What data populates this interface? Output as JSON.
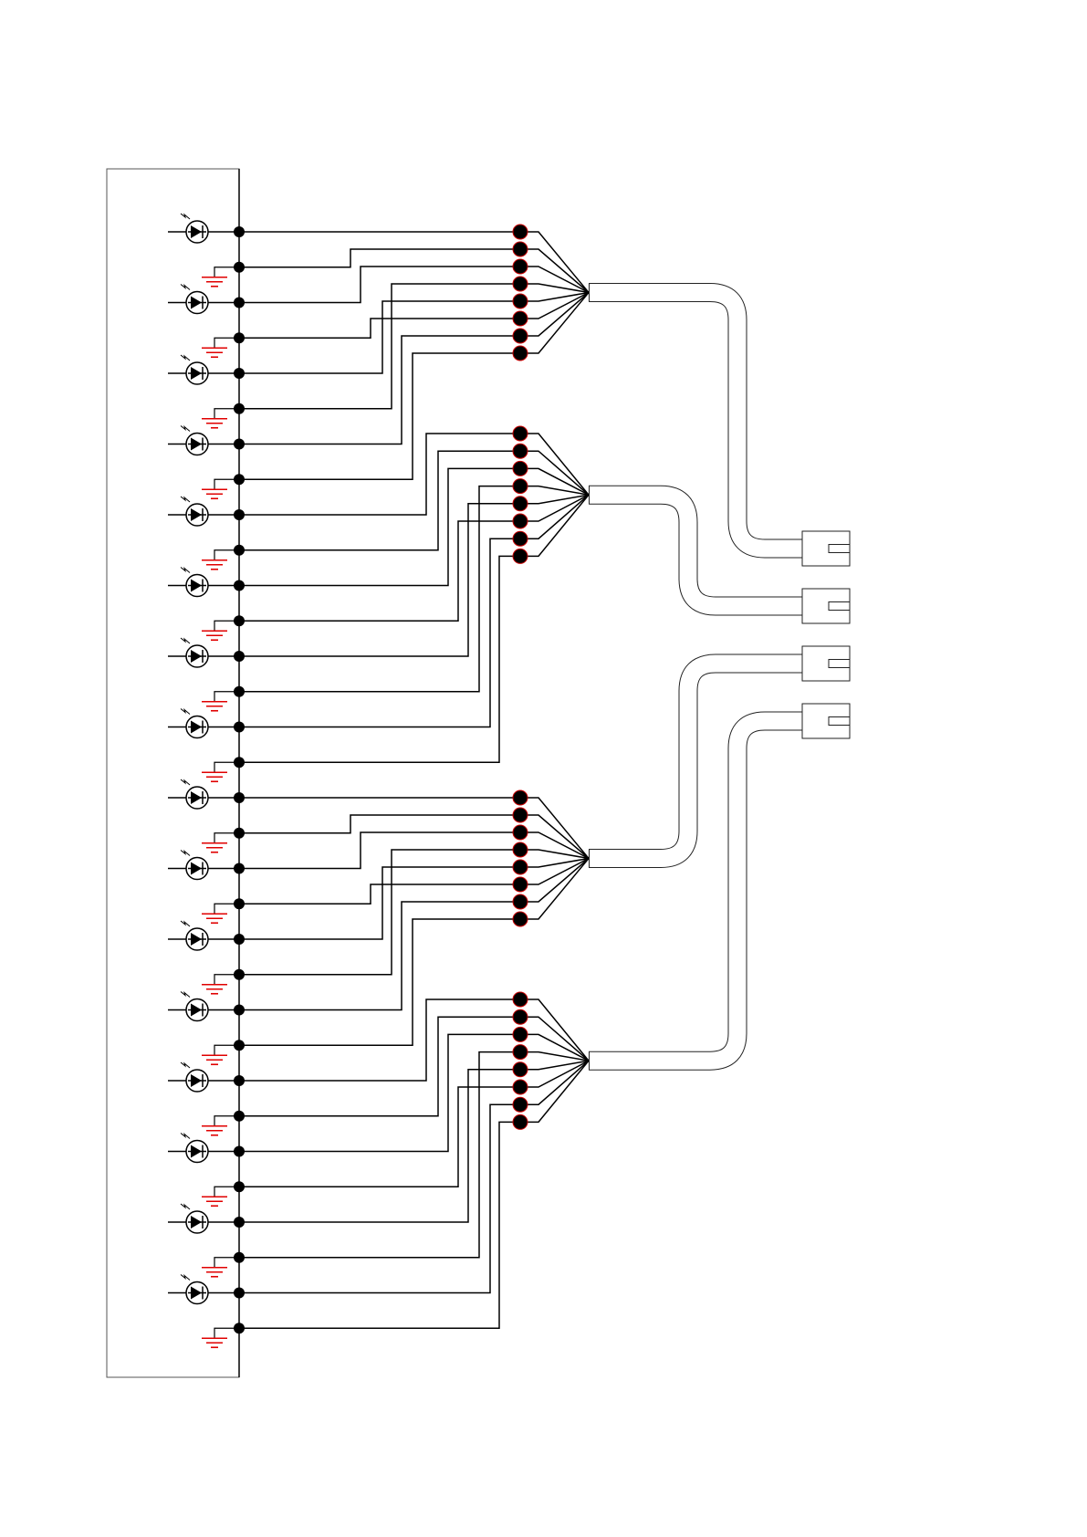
{
  "colors": {
    "wire": "#000000",
    "ground": "#e00000",
    "pin_fill": "#000000",
    "pin_outline": "#cc0000",
    "frame": "#555555",
    "cable_fill": "#ffffff"
  },
  "icons": {
    "led": "photodiode-icon",
    "ground": "ground-icon",
    "pin": "connector-pin-icon",
    "plug": "plug-connector-icon"
  },
  "connectivity": {
    "pin_to_bus_node_order": [
      0,
      1,
      2,
      5,
      4,
      3,
      6,
      7
    ],
    "cable_to_plug": [
      0,
      1,
      2,
      3
    ]
  }
}
